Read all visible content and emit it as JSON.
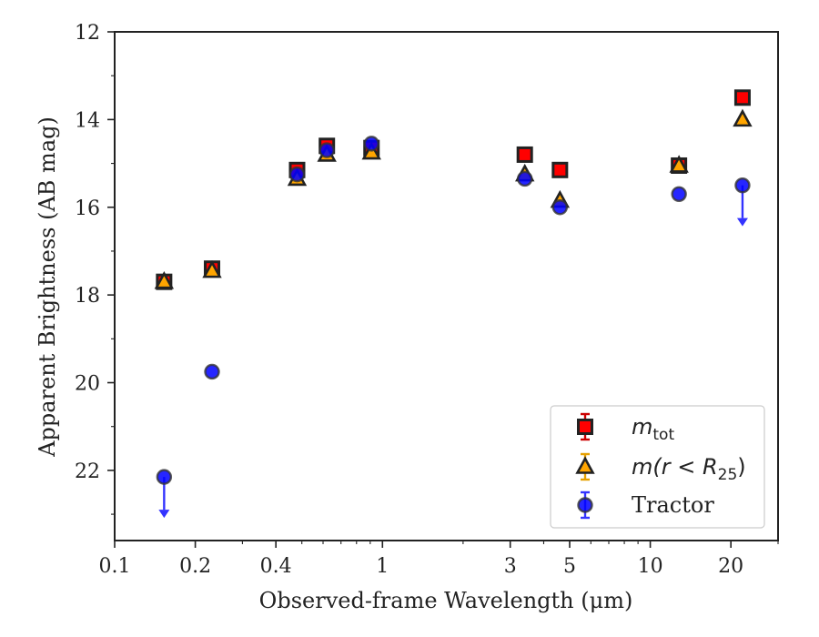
{
  "chart_data": {
    "type": "scatter",
    "xlabel": "Observed-frame Wavelength (μm)",
    "ylabel": "Apparent Brightness (AB mag)",
    "x_scale": "log",
    "y_inverted": true,
    "xlim": [
      0.1,
      30
    ],
    "ylim": [
      12,
      23.6
    ],
    "x_ticks": [
      {
        "value": 0.1,
        "label": "0.1"
      },
      {
        "value": 0.2,
        "label": "0.2"
      },
      {
        "value": 0.4,
        "label": "0.4"
      },
      {
        "value": 1,
        "label": "1"
      },
      {
        "value": 3,
        "label": "3"
      },
      {
        "value": 5,
        "label": "5"
      },
      {
        "value": 10,
        "label": "10"
      },
      {
        "value": 20,
        "label": "20"
      }
    ],
    "y_ticks": [
      {
        "value": 12,
        "label": "12"
      },
      {
        "value": 14,
        "label": "14"
      },
      {
        "value": 16,
        "label": "16"
      },
      {
        "value": 18,
        "label": "18"
      },
      {
        "value": 20,
        "label": "20"
      },
      {
        "value": 22,
        "label": "22"
      }
    ],
    "grid": false,
    "legend_position": "bottom-right",
    "series": [
      {
        "name": "m_tot",
        "legend_main": "m",
        "legend_sub": "tot",
        "marker": "square",
        "color": "#ff0000",
        "errcolor": "#cc0000",
        "x": [
          0.153,
          0.231,
          0.48,
          0.62,
          0.91,
          3.4,
          4.6,
          12.8,
          22.1
        ],
        "y": [
          17.7,
          17.4,
          15.15,
          14.6,
          14.65,
          14.8,
          15.15,
          15.05,
          13.5
        ],
        "upper_limit": [
          false,
          false,
          false,
          false,
          false,
          false,
          false,
          false,
          false
        ]
      },
      {
        "name": "m(r < R25)",
        "legend_main": "m(r < R",
        "legend_sub": "25",
        "legend_end": ")",
        "marker": "triangle",
        "color": "#ffa500",
        "errcolor": "#e6a000",
        "x": [
          0.153,
          0.231,
          0.48,
          0.62,
          0.91,
          3.4,
          4.6,
          12.8,
          22.1
        ],
        "y": [
          17.7,
          17.45,
          15.35,
          14.8,
          14.75,
          15.25,
          15.85,
          15.05,
          14.0
        ],
        "upper_limit": [
          false,
          false,
          false,
          false,
          false,
          false,
          false,
          false,
          false
        ]
      },
      {
        "name": "Tractor",
        "legend_main": "Tractor",
        "marker": "circle",
        "color": "#0000ff",
        "errcolor": "#3333ff",
        "x": [
          0.153,
          0.231,
          0.48,
          0.62,
          0.91,
          3.4,
          4.6,
          12.8,
          22.1
        ],
        "y": [
          22.15,
          19.75,
          15.25,
          14.7,
          14.55,
          15.35,
          16.0,
          15.7,
          15.5
        ],
        "upper_limit": [
          true,
          false,
          false,
          false,
          false,
          false,
          false,
          false,
          true
        ]
      }
    ]
  }
}
